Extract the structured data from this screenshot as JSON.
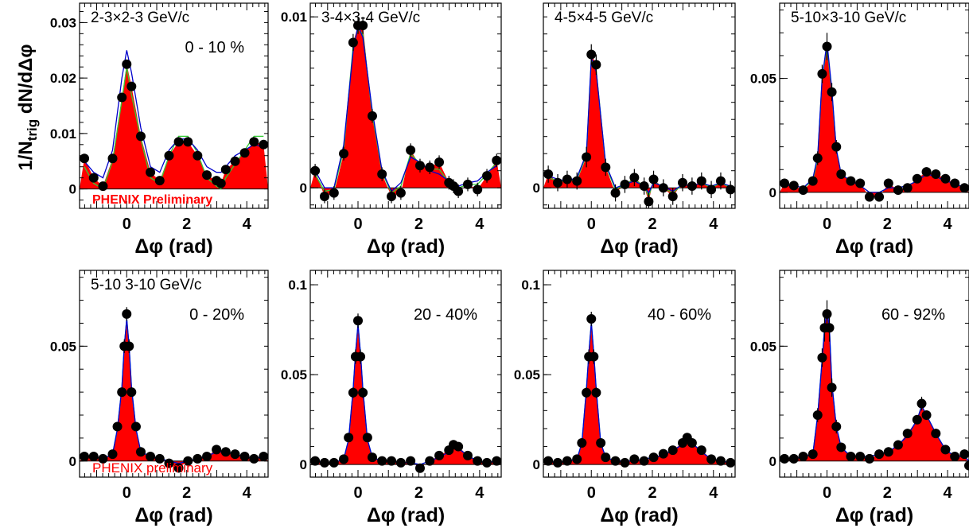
{
  "figure": {
    "ylabel_main": "1/N",
    "ylabel_sub": "trig",
    "ylabel_rest": " dN/dΔφ",
    "colors": {
      "fill": "#ff0000",
      "marker": "#000000",
      "line_blue": "#0000cc",
      "line_green": "#33cc33",
      "line_cyan": "#00bbbb",
      "label_red": "#ff0000"
    }
  },
  "chart_data": [
    {
      "type": "line",
      "label": "2-3×2-3 GeV/c",
      "centrality": "0 - 10 %",
      "watermark": "PHENIX Preliminary",
      "xlabel": "Δφ (rad)",
      "xlim": [
        -1.57,
        4.71
      ],
      "ylim": [
        -0.0035,
        0.0335
      ],
      "xticks": [
        "0",
        "2",
        "4"
      ],
      "yticks": [
        {
          "v": 0,
          "t": "0"
        },
        {
          "v": 0.01,
          "t": "0.01"
        },
        {
          "v": 0.02,
          "t": "0.02"
        },
        {
          "v": 0.03,
          "t": "0.03"
        }
      ],
      "x": [
        -1.41,
        -1.1,
        -0.79,
        -0.47,
        -0.16,
        0.0,
        0.16,
        0.47,
        0.79,
        1.1,
        1.41,
        1.73,
        2.04,
        2.36,
        2.67,
        2.99,
        3.14,
        3.3,
        3.61,
        3.93,
        4.24,
        4.56
      ],
      "y": [
        0.0055,
        0.002,
        0.0005,
        0.0055,
        0.0165,
        0.0225,
        0.0185,
        0.0095,
        0.003,
        0.0015,
        0.006,
        0.0085,
        0.0085,
        0.006,
        0.0025,
        0.0015,
        0.001,
        0.0035,
        0.005,
        0.0065,
        0.0085,
        0.008
      ],
      "y_blue": [
        0.005,
        0.003,
        0.002,
        0.007,
        0.02,
        0.025,
        0.021,
        0.011,
        0.004,
        0.003,
        0.007,
        0.009,
        0.009,
        0.007,
        0.004,
        0.003,
        0.003,
        0.004,
        0.006,
        0.007,
        0.008,
        0.0075
      ],
      "y_green": [
        0.004,
        0.001,
        0.0,
        0.005,
        0.016,
        0.022,
        0.017,
        0.009,
        0.002,
        0.001,
        0.006,
        0.0095,
        0.0095,
        0.0065,
        0.002,
        0.0005,
        0.0,
        0.002,
        0.0045,
        0.007,
        0.0095,
        0.0095
      ],
      "yerr": [
        0.0006,
        0.0006,
        0.0006,
        0.0006,
        0.0007,
        0.0007,
        0.0007,
        0.0006,
        0.0006,
        0.0006,
        0.0006,
        0.0006,
        0.0006,
        0.0006,
        0.0006,
        0.0006,
        0.0006,
        0.0006,
        0.0006,
        0.0006,
        0.0006,
        0.0006
      ]
    },
    {
      "type": "line",
      "label": "3-4×3-4 GeV/c",
      "centrality": "",
      "watermark": "",
      "xlabel": "Δφ (rad)",
      "xlim": [
        -1.57,
        4.71
      ],
      "ylim": [
        -0.0012,
        0.0108
      ],
      "xticks": [
        "0",
        "2",
        "4"
      ],
      "yticks": [
        {
          "v": 0,
          "t": "0"
        },
        {
          "v": 0.01,
          "t": "0.01"
        }
      ],
      "x": [
        -1.41,
        -1.1,
        -0.79,
        -0.47,
        -0.16,
        0.0,
        0.16,
        0.47,
        0.79,
        1.1,
        1.41,
        1.73,
        2.04,
        2.36,
        2.67,
        2.99,
        3.14,
        3.3,
        3.61,
        3.93,
        4.24,
        4.56
      ],
      "y": [
        0.001,
        -0.0005,
        -0.0003,
        0.002,
        0.0085,
        0.0095,
        0.0095,
        0.0042,
        0.0008,
        -0.0005,
        -0.0003,
        0.0022,
        0.0013,
        0.0012,
        0.0015,
        0.0003,
        0.0001,
        -0.0002,
        0.0002,
        -0.0001,
        0.0007,
        0.0016
      ],
      "y_blue": [
        0.001,
        0.0,
        0.0,
        0.0025,
        0.008,
        0.0095,
        0.0088,
        0.0045,
        0.001,
        -0.0002,
        0.0003,
        0.0018,
        0.0015,
        0.001,
        0.0008,
        0.0004,
        0.0002,
        0.0001,
        0.0003,
        0.0004,
        0.0009,
        0.0013
      ],
      "y_green": [
        0.0008,
        -0.0002,
        -0.0001,
        0.0022,
        0.0083,
        0.0093,
        0.009,
        0.0043,
        0.0009,
        -0.0003,
        0.0001,
        0.002,
        0.0014,
        0.0011,
        0.0011,
        0.0003,
        0.0001,
        0.0,
        0.0002,
        0.0002,
        0.0008,
        0.0015
      ],
      "yerr": [
        0.0004,
        0.0004,
        0.0004,
        0.0004,
        0.0005,
        0.0005,
        0.0005,
        0.0004,
        0.0004,
        0.0004,
        0.0004,
        0.0004,
        0.0004,
        0.0004,
        0.0004,
        0.0004,
        0.0004,
        0.0004,
        0.0004,
        0.0004,
        0.0004,
        0.0004
      ]
    },
    {
      "type": "line",
      "label": "4-5×4-5 GeV/c",
      "centrality": "",
      "watermark": "",
      "xlabel": "Δφ (rad)",
      "xlim": [
        -1.57,
        4.71
      ],
      "ylim": [
        -0.0012,
        0.0108
      ],
      "xticks": [
        "0",
        "2",
        "4"
      ],
      "yticks": [
        {
          "v": 0,
          "t": "0"
        }
      ],
      "x": [
        -1.41,
        -1.1,
        -0.79,
        -0.47,
        -0.16,
        0.0,
        0.16,
        0.47,
        0.79,
        1.1,
        1.41,
        1.73,
        1.88,
        2.04,
        2.36,
        2.67,
        2.99,
        3.3,
        3.61,
        3.93,
        4.24,
        4.56
      ],
      "y": [
        0.0008,
        0.0003,
        0.0005,
        0.0004,
        0.0018,
        0.0078,
        0.0072,
        0.0012,
        -0.0003,
        0.0002,
        0.0006,
        0.0001,
        -0.0008,
        0.0005,
        0.0,
        -0.0005,
        0.0003,
        0.0001,
        0.0004,
        -0.0001,
        0.0004,
        -0.0001
      ],
      "y_blue": [
        0.0007,
        0.0005,
        0.0004,
        0.0006,
        0.002,
        0.0076,
        0.0068,
        0.0014,
        0.0,
        0.0002,
        0.0004,
        0.0001,
        -0.0003,
        0.0003,
        0.0001,
        -0.0002,
        0.0002,
        0.0001,
        0.0003,
        0.0001,
        0.0003,
        0.0001
      ],
      "y_green": [
        0.0006,
        0.0004,
        0.0004,
        0.0005,
        0.0019,
        0.0075,
        0.0069,
        0.0013,
        -0.0001,
        0.0002,
        0.0005,
        0.0001,
        -0.0005,
        0.0004,
        0.0,
        -0.0003,
        0.0002,
        0.0001,
        0.0003,
        0.0,
        0.0003,
        0.0
      ],
      "yerr": [
        0.0005,
        0.0005,
        0.0005,
        0.0005,
        0.0006,
        0.0006,
        0.0006,
        0.0005,
        0.0005,
        0.0005,
        0.0005,
        0.0005,
        0.0005,
        0.0005,
        0.0005,
        0.0005,
        0.0005,
        0.0005,
        0.0005,
        0.0005,
        0.0005,
        0.0005
      ]
    },
    {
      "type": "line",
      "label": "5-10×3-10 GeV/c",
      "centrality": "",
      "watermark": "",
      "xlabel": "Δφ (rad)",
      "xlim": [
        -1.57,
        4.71
      ],
      "ylim": [
        -0.007,
        0.083
      ],
      "xticks": [
        "0",
        "2",
        "4"
      ],
      "yticks": [
        {
          "v": 0,
          "t": "0"
        },
        {
          "v": 0.05,
          "t": "0.05"
        }
      ],
      "x": [
        -1.41,
        -1.1,
        -0.79,
        -0.47,
        -0.31,
        -0.16,
        0.0,
        0.16,
        0.31,
        0.47,
        0.79,
        1.1,
        1.41,
        1.73,
        2.04,
        2.36,
        2.67,
        2.99,
        3.3,
        3.61,
        3.93,
        4.24,
        4.56
      ],
      "y": [
        0.004,
        0.003,
        0.001,
        0.005,
        0.015,
        0.052,
        0.064,
        0.044,
        0.02,
        0.008,
        0.005,
        0.004,
        -0.002,
        -0.002,
        0.004,
        0.001,
        0.002,
        0.006,
        0.009,
        0.008,
        0.006,
        0.004,
        0.002
      ],
      "y_blue": [
        0.003,
        0.003,
        0.002,
        0.006,
        0.016,
        0.05,
        0.066,
        0.045,
        0.019,
        0.008,
        0.005,
        0.003,
        0.0,
        0.0,
        0.002,
        0.002,
        0.003,
        0.005,
        0.008,
        0.007,
        0.005,
        0.004,
        0.002
      ],
      "y_green": [
        0.003,
        0.003,
        0.002,
        0.005,
        0.015,
        0.05,
        0.064,
        0.044,
        0.019,
        0.008,
        0.005,
        0.003,
        0.0,
        0.0,
        0.002,
        0.002,
        0.003,
        0.005,
        0.008,
        0.007,
        0.005,
        0.004,
        0.002
      ],
      "yerr": [
        0.002,
        0.002,
        0.002,
        0.002,
        0.003,
        0.004,
        0.006,
        0.004,
        0.003,
        0.002,
        0.002,
        0.002,
        0.002,
        0.002,
        0.002,
        0.002,
        0.002,
        0.002,
        0.002,
        0.002,
        0.002,
        0.002,
        0.002
      ]
    },
    {
      "type": "line",
      "label": "5-10   3-10 GeV/c",
      "centrality": "0 - 20%",
      "watermark": "PHENIX preliminary",
      "xlabel": "Δφ (rad)",
      "xlim": [
        -1.57,
        4.71
      ],
      "ylim": [
        -0.007,
        0.083
      ],
      "xticks": [
        "0",
        "2",
        "4"
      ],
      "yticks": [
        {
          "v": 0,
          "t": "0"
        },
        {
          "v": 0.05,
          "t": "0.05"
        }
      ],
      "x": [
        -1.41,
        -1.1,
        -0.79,
        -0.47,
        -0.31,
        -0.16,
        -0.08,
        0.0,
        0.08,
        0.16,
        0.31,
        0.47,
        0.79,
        1.1,
        1.41,
        1.73,
        2.04,
        2.36,
        2.67,
        2.99,
        3.3,
        3.61,
        3.93,
        4.24,
        4.56
      ],
      "y": [
        0.002,
        0.002,
        0.001,
        0.003,
        0.015,
        0.03,
        0.05,
        0.064,
        0.05,
        0.03,
        0.015,
        0.004,
        0.002,
        0.001,
        -0.001,
        -0.003,
        0.0,
        0.001,
        0.002,
        0.005,
        0.004,
        0.003,
        0.002,
        0.001,
        0.002
      ],
      "y_blue": [
        0.002,
        0.002,
        0.001,
        0.003,
        0.014,
        0.032,
        0.05,
        0.062,
        0.05,
        0.032,
        0.014,
        0.004,
        0.002,
        0.001,
        0.0,
        -0.001,
        0.0,
        0.001,
        0.002,
        0.004,
        0.004,
        0.003,
        0.002,
        0.001,
        0.002
      ],
      "y_green": [
        0.002,
        0.002,
        0.001,
        0.003,
        0.014,
        0.032,
        0.05,
        0.062,
        0.05,
        0.032,
        0.014,
        0.004,
        0.002,
        0.001,
        0.0,
        -0.001,
        0.0,
        0.001,
        0.002,
        0.004,
        0.004,
        0.003,
        0.002,
        0.001,
        0.002
      ],
      "yerr": [
        0.001,
        0.001,
        0.001,
        0.001,
        0.002,
        0.002,
        0.003,
        0.003,
        0.003,
        0.002,
        0.002,
        0.001,
        0.001,
        0.001,
        0.001,
        0.001,
        0.001,
        0.001,
        0.001,
        0.001,
        0.001,
        0.001,
        0.001,
        0.001,
        0.001
      ]
    },
    {
      "type": "line",
      "label": "",
      "centrality": "20 - 40%",
      "watermark": "",
      "xlabel": "Δφ (rad)",
      "xlim": [
        -1.57,
        4.71
      ],
      "ylim": [
        -0.007,
        0.108
      ],
      "xticks": [
        "0",
        "2",
        "4"
      ],
      "yticks": [
        {
          "v": 0,
          "t": "0"
        },
        {
          "v": 0.05,
          "t": "0.05"
        },
        {
          "v": 0.1,
          "t": "0.1"
        }
      ],
      "x": [
        -1.41,
        -1.1,
        -0.79,
        -0.47,
        -0.31,
        -0.16,
        -0.08,
        0.0,
        0.08,
        0.16,
        0.31,
        0.47,
        0.79,
        1.1,
        1.41,
        1.73,
        2.04,
        2.36,
        2.67,
        2.99,
        3.14,
        3.3,
        3.61,
        3.93,
        4.24,
        4.56
      ],
      "y": [
        0.002,
        0.001,
        0.001,
        0.003,
        0.015,
        0.04,
        0.06,
        0.08,
        0.06,
        0.04,
        0.015,
        0.004,
        0.002,
        0.002,
        0.001,
        0.002,
        -0.002,
        0.002,
        0.005,
        0.008,
        0.011,
        0.01,
        0.005,
        0.002,
        0.001,
        0.002
      ],
      "y_blue": [
        0.002,
        0.001,
        0.001,
        0.003,
        0.014,
        0.042,
        0.062,
        0.078,
        0.062,
        0.042,
        0.014,
        0.004,
        0.002,
        0.002,
        0.001,
        0.001,
        0.0,
        0.002,
        0.004,
        0.007,
        0.01,
        0.009,
        0.005,
        0.002,
        0.001,
        0.002
      ],
      "y_green": [
        0.002,
        0.001,
        0.001,
        0.003,
        0.014,
        0.042,
        0.062,
        0.078,
        0.062,
        0.042,
        0.014,
        0.004,
        0.002,
        0.002,
        0.001,
        0.001,
        0.0,
        0.002,
        0.004,
        0.007,
        0.01,
        0.009,
        0.005,
        0.002,
        0.001,
        0.002
      ],
      "yerr": [
        0.0015,
        0.0015,
        0.0015,
        0.0015,
        0.002,
        0.003,
        0.004,
        0.004,
        0.004,
        0.003,
        0.002,
        0.0015,
        0.0015,
        0.0015,
        0.0015,
        0.0015,
        0.0015,
        0.0015,
        0.0015,
        0.0015,
        0.0015,
        0.0015,
        0.0015,
        0.0015,
        0.0015,
        0.0015
      ]
    },
    {
      "type": "line",
      "label": "",
      "centrality": "40 - 60%",
      "watermark": "",
      "xlabel": "Δφ (rad)",
      "xlim": [
        -1.57,
        4.71
      ],
      "ylim": [
        -0.007,
        0.108
      ],
      "xticks": [
        "0",
        "2",
        "4"
      ],
      "yticks": [
        {
          "v": 0,
          "t": "0"
        },
        {
          "v": 0.05,
          "t": "0.05"
        },
        {
          "v": 0.1,
          "t": "0.1"
        }
      ],
      "x": [
        -1.41,
        -1.1,
        -0.79,
        -0.47,
        -0.31,
        -0.16,
        -0.08,
        0.0,
        0.08,
        0.16,
        0.31,
        0.47,
        0.79,
        1.1,
        1.41,
        1.73,
        2.04,
        2.36,
        2.67,
        2.99,
        3.14,
        3.3,
        3.61,
        3.93,
        4.24,
        4.56
      ],
      "y": [
        0.002,
        0.001,
        0.002,
        0.003,
        0.012,
        0.04,
        0.06,
        0.081,
        0.06,
        0.04,
        0.012,
        0.004,
        0.002,
        0.001,
        0.003,
        0.002,
        0.004,
        0.006,
        0.008,
        0.012,
        0.015,
        0.012,
        0.008,
        0.003,
        0.002,
        0.001
      ],
      "y_blue": [
        0.002,
        0.001,
        0.002,
        0.003,
        0.012,
        0.042,
        0.062,
        0.079,
        0.062,
        0.042,
        0.012,
        0.004,
        0.002,
        0.002,
        0.002,
        0.003,
        0.004,
        0.005,
        0.008,
        0.011,
        0.014,
        0.012,
        0.007,
        0.003,
        0.002,
        0.001
      ],
      "y_green": [
        0.002,
        0.001,
        0.002,
        0.003,
        0.012,
        0.042,
        0.062,
        0.079,
        0.062,
        0.042,
        0.012,
        0.004,
        0.002,
        0.002,
        0.002,
        0.003,
        0.004,
        0.005,
        0.008,
        0.011,
        0.014,
        0.012,
        0.007,
        0.003,
        0.002,
        0.001
      ],
      "yerr": [
        0.0015,
        0.0015,
        0.0015,
        0.0015,
        0.002,
        0.003,
        0.004,
        0.004,
        0.004,
        0.003,
        0.002,
        0.0015,
        0.0015,
        0.0015,
        0.0015,
        0.0015,
        0.0015,
        0.0015,
        0.0015,
        0.0015,
        0.0015,
        0.0015,
        0.0015,
        0.0015,
        0.0015,
        0.0015
      ]
    },
    {
      "type": "line",
      "label": "",
      "centrality": "60 - 92%",
      "watermark": "",
      "xlabel": "Δφ (rad)",
      "xlim": [
        -1.57,
        4.71
      ],
      "ylim": [
        -0.007,
        0.083
      ],
      "xticks": [
        "0",
        "2",
        "4"
      ],
      "yticks": [
        {
          "v": 0,
          "t": "0"
        },
        {
          "v": 0.05,
          "t": "0.05"
        }
      ],
      "x": [
        -1.41,
        -1.1,
        -0.79,
        -0.47,
        -0.31,
        -0.16,
        -0.08,
        0.0,
        0.08,
        0.16,
        0.31,
        0.47,
        0.79,
        1.1,
        1.41,
        1.73,
        2.04,
        2.36,
        2.67,
        2.99,
        3.14,
        3.3,
        3.61,
        3.93,
        4.24,
        4.56,
        4.71
      ],
      "y": [
        0.001,
        0.001,
        0.002,
        0.003,
        0.02,
        0.045,
        0.058,
        0.064,
        0.058,
        0.032,
        0.015,
        0.006,
        0.002,
        0.002,
        0.001,
        0.003,
        0.004,
        0.007,
        0.012,
        0.018,
        0.025,
        0.02,
        0.012,
        0.005,
        0.002,
        0.003,
        -0.002
      ],
      "y_blue": [
        0.001,
        0.001,
        0.002,
        0.003,
        0.02,
        0.044,
        0.058,
        0.066,
        0.058,
        0.034,
        0.015,
        0.006,
        0.002,
        0.002,
        0.002,
        0.003,
        0.004,
        0.007,
        0.011,
        0.018,
        0.024,
        0.02,
        0.012,
        0.005,
        0.002,
        0.002,
        0.0
      ],
      "y_green": [
        0.001,
        0.001,
        0.002,
        0.003,
        0.02,
        0.044,
        0.058,
        0.066,
        0.058,
        0.034,
        0.015,
        0.006,
        0.002,
        0.002,
        0.002,
        0.003,
        0.004,
        0.007,
        0.011,
        0.018,
        0.024,
        0.02,
        0.012,
        0.005,
        0.002,
        0.002,
        0.0
      ],
      "yerr": [
        0.002,
        0.002,
        0.002,
        0.002,
        0.003,
        0.004,
        0.006,
        0.006,
        0.006,
        0.004,
        0.003,
        0.002,
        0.002,
        0.002,
        0.002,
        0.002,
        0.002,
        0.002,
        0.002,
        0.002,
        0.003,
        0.002,
        0.002,
        0.002,
        0.002,
        0.002,
        0.002
      ]
    }
  ]
}
